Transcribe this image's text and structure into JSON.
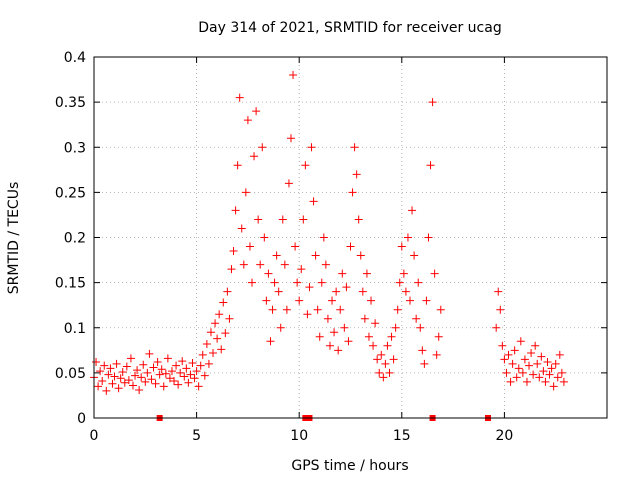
{
  "chart_data": {
    "type": "scatter",
    "title": "Day 314 of 2021, SRMTID for receiver ucag",
    "xlabel": "GPS time / hours",
    "ylabel": "SRMTID / TECUs",
    "xlim": [
      0,
      25
    ],
    "ylim": [
      0,
      0.4
    ],
    "x_ticks": [
      0,
      5,
      10,
      15,
      20
    ],
    "y_ticks": [
      0,
      0.05,
      0.1,
      0.15,
      0.2,
      0.25,
      0.3,
      0.35,
      0.4
    ],
    "x_tick_labels": [
      "0",
      "5",
      "10",
      "15",
      "20"
    ],
    "y_tick_labels": [
      "0",
      "0.05",
      "0.1",
      "0.15",
      "0.2",
      "0.25",
      "0.3",
      "0.35",
      "0.4"
    ],
    "grid": true,
    "marker": "+",
    "marker_color": "#ff0000",
    "series": [
      {
        "name": "SRMTID",
        "points": [
          [
            0.0,
            0.045
          ],
          [
            0.1,
            0.062
          ],
          [
            0.2,
            0.035
          ],
          [
            0.3,
            0.052
          ],
          [
            0.4,
            0.041
          ],
          [
            0.5,
            0.058
          ],
          [
            0.6,
            0.03
          ],
          [
            0.7,
            0.048
          ],
          [
            0.8,
            0.055
          ],
          [
            0.9,
            0.038
          ],
          [
            1.0,
            0.046
          ],
          [
            1.1,
            0.06
          ],
          [
            1.2,
            0.033
          ],
          [
            1.3,
            0.044
          ],
          [
            1.4,
            0.051
          ],
          [
            1.5,
            0.039
          ],
          [
            1.6,
            0.057
          ],
          [
            1.7,
            0.042
          ],
          [
            1.8,
            0.066
          ],
          [
            1.9,
            0.036
          ],
          [
            2.0,
            0.047
          ],
          [
            2.1,
            0.053
          ],
          [
            2.2,
            0.031
          ],
          [
            2.3,
            0.045
          ],
          [
            2.4,
            0.059
          ],
          [
            2.5,
            0.04
          ],
          [
            2.6,
            0.05
          ],
          [
            2.7,
            0.071
          ],
          [
            2.8,
            0.043
          ],
          [
            2.9,
            0.056
          ],
          [
            3.0,
            0.038
          ],
          [
            3.1,
            0.062
          ],
          [
            3.2,
            0.048
          ],
          [
            3.3,
            0.054
          ],
          [
            3.4,
            0.035
          ],
          [
            3.5,
            0.049
          ],
          [
            3.6,
            0.066
          ],
          [
            3.7,
            0.044
          ],
          [
            3.8,
            0.052
          ],
          [
            3.9,
            0.041
          ],
          [
            4.0,
            0.058
          ],
          [
            4.1,
            0.037
          ],
          [
            4.2,
            0.05
          ],
          [
            4.3,
            0.063
          ],
          [
            4.4,
            0.046
          ],
          [
            4.5,
            0.055
          ],
          [
            4.6,
            0.039
          ],
          [
            4.7,
            0.048
          ],
          [
            4.8,
            0.061
          ],
          [
            4.9,
            0.044
          ],
          [
            5.0,
            0.052
          ],
          [
            5.1,
            0.035
          ],
          [
            5.2,
            0.058
          ],
          [
            5.3,
            0.07
          ],
          [
            5.4,
            0.047
          ],
          [
            5.5,
            0.082
          ],
          [
            5.6,
            0.06
          ],
          [
            5.7,
            0.095
          ],
          [
            5.8,
            0.072
          ],
          [
            5.9,
            0.105
          ],
          [
            6.0,
            0.088
          ],
          [
            6.1,
            0.115
          ],
          [
            6.2,
            0.076
          ],
          [
            6.3,
            0.128
          ],
          [
            6.4,
            0.094
          ],
          [
            6.5,
            0.14
          ],
          [
            6.6,
            0.11
          ],
          [
            6.7,
            0.165
          ],
          [
            6.8,
            0.185
          ],
          [
            6.9,
            0.23
          ],
          [
            7.0,
            0.28
          ],
          [
            7.1,
            0.355
          ],
          [
            7.2,
            0.21
          ],
          [
            7.3,
            0.17
          ],
          [
            7.4,
            0.25
          ],
          [
            7.5,
            0.33
          ],
          [
            7.6,
            0.19
          ],
          [
            7.7,
            0.15
          ],
          [
            7.8,
            0.29
          ],
          [
            7.9,
            0.34
          ],
          [
            8.0,
            0.22
          ],
          [
            8.1,
            0.17
          ],
          [
            8.2,
            0.3
          ],
          [
            8.3,
            0.2
          ],
          [
            8.4,
            0.13
          ],
          [
            8.5,
            0.16
          ],
          [
            8.6,
            0.085
          ],
          [
            8.7,
            0.12
          ],
          [
            8.8,
            0.15
          ],
          [
            8.9,
            0.18
          ],
          [
            9.0,
            0.14
          ],
          [
            9.1,
            0.1
          ],
          [
            9.2,
            0.22
          ],
          [
            9.3,
            0.17
          ],
          [
            9.4,
            0.12
          ],
          [
            9.5,
            0.26
          ],
          [
            9.6,
            0.31
          ],
          [
            9.7,
            0.38
          ],
          [
            9.8,
            0.19
          ],
          [
            9.9,
            0.15
          ],
          [
            10.0,
            0.13
          ],
          [
            10.1,
            0.165
          ],
          [
            10.2,
            0.22
          ],
          [
            10.3,
            0.28
          ],
          [
            10.4,
            0.115
          ],
          [
            10.5,
            0.145
          ],
          [
            10.6,
            0.3
          ],
          [
            10.7,
            0.24
          ],
          [
            10.8,
            0.18
          ],
          [
            10.9,
            0.12
          ],
          [
            11.0,
            0.09
          ],
          [
            11.1,
            0.15
          ],
          [
            11.2,
            0.2
          ],
          [
            11.3,
            0.17
          ],
          [
            11.4,
            0.11
          ],
          [
            11.5,
            0.08
          ],
          [
            11.6,
            0.13
          ],
          [
            11.7,
            0.095
          ],
          [
            11.8,
            0.14
          ],
          [
            11.9,
            0.075
          ],
          [
            12.0,
            0.12
          ],
          [
            12.1,
            0.16
          ],
          [
            12.2,
            0.1
          ],
          [
            12.3,
            0.145
          ],
          [
            12.4,
            0.085
          ],
          [
            12.5,
            0.19
          ],
          [
            12.6,
            0.25
          ],
          [
            12.7,
            0.3
          ],
          [
            12.8,
            0.27
          ],
          [
            12.9,
            0.22
          ],
          [
            13.0,
            0.18
          ],
          [
            13.1,
            0.14
          ],
          [
            13.2,
            0.11
          ],
          [
            13.3,
            0.16
          ],
          [
            13.4,
            0.09
          ],
          [
            13.5,
            0.13
          ],
          [
            13.6,
            0.08
          ],
          [
            13.7,
            0.105
          ],
          [
            13.8,
            0.065
          ],
          [
            13.9,
            0.05
          ],
          [
            14.0,
            0.07
          ],
          [
            14.1,
            0.045
          ],
          [
            14.2,
            0.06
          ],
          [
            14.3,
            0.08
          ],
          [
            14.4,
            0.05
          ],
          [
            14.5,
            0.09
          ],
          [
            14.6,
            0.065
          ],
          [
            14.7,
            0.1
          ],
          [
            14.8,
            0.12
          ],
          [
            14.9,
            0.15
          ],
          [
            15.0,
            0.19
          ],
          [
            15.1,
            0.16
          ],
          [
            15.2,
            0.14
          ],
          [
            15.3,
            0.2
          ],
          [
            15.4,
            0.13
          ],
          [
            15.5,
            0.23
          ],
          [
            15.6,
            0.18
          ],
          [
            15.7,
            0.11
          ],
          [
            15.8,
            0.15
          ],
          [
            15.9,
            0.1
          ],
          [
            16.0,
            0.075
          ],
          [
            16.1,
            0.06
          ],
          [
            16.2,
            0.13
          ],
          [
            16.3,
            0.2
          ],
          [
            16.4,
            0.28
          ],
          [
            16.5,
            0.35
          ],
          [
            16.6,
            0.16
          ],
          [
            16.7,
            0.07
          ],
          [
            16.8,
            0.09
          ],
          [
            16.9,
            0.12
          ],
          [
            19.6,
            0.1
          ],
          [
            19.7,
            0.14
          ],
          [
            19.8,
            0.12
          ],
          [
            19.9,
            0.08
          ],
          [
            20.0,
            0.065
          ],
          [
            20.1,
            0.05
          ],
          [
            20.2,
            0.07
          ],
          [
            20.3,
            0.04
          ],
          [
            20.4,
            0.06
          ],
          [
            20.5,
            0.075
          ],
          [
            20.6,
            0.045
          ],
          [
            20.7,
            0.055
          ],
          [
            20.8,
            0.085
          ],
          [
            20.9,
            0.05
          ],
          [
            21.0,
            0.065
          ],
          [
            21.1,
            0.04
          ],
          [
            21.2,
            0.058
          ],
          [
            21.3,
            0.072
          ],
          [
            21.4,
            0.048
          ],
          [
            21.5,
            0.08
          ],
          [
            21.6,
            0.06
          ],
          [
            21.7,
            0.045
          ],
          [
            21.8,
            0.068
          ],
          [
            21.9,
            0.052
          ],
          [
            22.0,
            0.04
          ],
          [
            22.1,
            0.062
          ],
          [
            22.2,
            0.048
          ],
          [
            22.3,
            0.055
          ],
          [
            22.4,
            0.035
          ],
          [
            22.5,
            0.06
          ],
          [
            22.6,
            0.045
          ],
          [
            22.7,
            0.07
          ],
          [
            22.8,
            0.05
          ],
          [
            22.9,
            0.04
          ]
        ]
      },
      {
        "name": "zero-level markers",
        "points": [
          [
            3.2,
            0
          ],
          [
            10.3,
            0
          ],
          [
            10.5,
            0
          ],
          [
            16.5,
            0
          ],
          [
            19.2,
            0
          ]
        ]
      }
    ]
  }
}
